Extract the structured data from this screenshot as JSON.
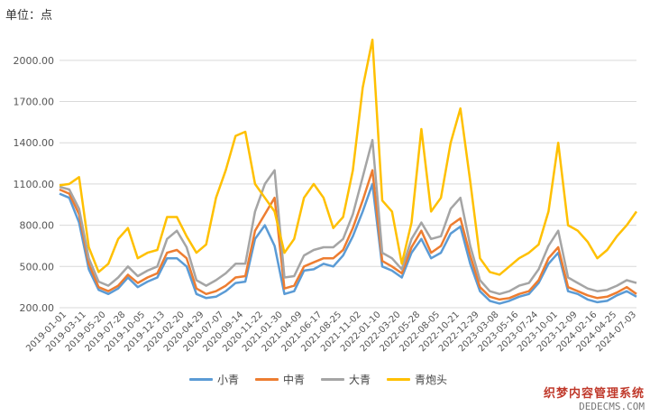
{
  "unit_label": "单位：点",
  "watermark": {
    "line1": "织梦内容管理系统",
    "line2": "DEDECMS.COM"
  },
  "chart_data": {
    "type": "line",
    "ylim": [
      200,
      2150
    ],
    "y_ticks": [
      "200.00",
      "500.00",
      "800.00",
      "1100.00",
      "1400.00",
      "1700.00",
      "2000.00"
    ],
    "y_tick_values": [
      200,
      500,
      800,
      1100,
      1400,
      1700,
      2000
    ],
    "x_ticks": [
      "2019-01-01",
      "2019-03-11",
      "2019-05-20",
      "2019-07-28",
      "2019-10-05",
      "2019-12-13",
      "2020-02-20",
      "2020-04-29",
      "2020-07-07",
      "2020-09-14",
      "2020-11-22",
      "2021-01-30",
      "2021-04-09",
      "2021-06-17",
      "2021-08-25",
      "2021-11-02",
      "2022-01-10",
      "2022-03-20",
      "2022-05-28",
      "2022-08-05",
      "2022-10-21",
      "2022-12-29",
      "2023-03-08",
      "2023-05-16",
      "2023-07-24",
      "2023-10-01",
      "2023-12-09",
      "2024-02-16",
      "2024-04-25",
      "2024-07-03"
    ],
    "grid": "horizontal",
    "legend_position": "bottom",
    "series": [
      {
        "name": "小青",
        "color": "#5b9bd5",
        "values": [
          1030,
          1000,
          820,
          480,
          330,
          300,
          340,
          420,
          350,
          390,
          420,
          560,
          560,
          500,
          300,
          270,
          280,
          320,
          380,
          390,
          700,
          800,
          650,
          300,
          320,
          470,
          480,
          520,
          500,
          580,
          720,
          900,
          1100,
          500,
          470,
          420,
          600,
          700,
          560,
          600,
          740,
          790,
          520,
          320,
          250,
          230,
          250,
          280,
          300,
          380,
          520,
          600,
          320,
          300,
          260,
          240,
          250,
          290,
          320,
          280
        ]
      },
      {
        "name": "中青",
        "color": "#ed7d31",
        "values": [
          1060,
          1030,
          880,
          520,
          350,
          320,
          360,
          440,
          380,
          420,
          450,
          600,
          620,
          560,
          340,
          300,
          320,
          360,
          420,
          430,
          760,
          880,
          1000,
          340,
          360,
          500,
          530,
          560,
          560,
          620,
          780,
          980,
          1200,
          540,
          500,
          450,
          640,
          760,
          600,
          650,
          800,
          850,
          580,
          350,
          280,
          260,
          270,
          300,
          320,
          400,
          560,
          640,
          350,
          320,
          290,
          270,
          280,
          310,
          350,
          300
        ]
      },
      {
        "name": "大青",
        "color": "#a5a5a5",
        "values": [
          1080,
          1060,
          920,
          560,
          390,
          360,
          420,
          500,
          430,
          470,
          500,
          700,
          760,
          640,
          400,
          360,
          400,
          450,
          520,
          520,
          900,
          1100,
          1200,
          420,
          430,
          580,
          620,
          640,
          640,
          700,
          880,
          1150,
          1420,
          600,
          560,
          480,
          700,
          820,
          700,
          720,
          920,
          1000,
          650,
          400,
          320,
          300,
          320,
          360,
          380,
          480,
          650,
          760,
          420,
          380,
          340,
          320,
          330,
          360,
          400,
          380
        ]
      },
      {
        "name": "青炮头",
        "color": "#ffc000",
        "values": [
          1090,
          1100,
          1150,
          640,
          460,
          520,
          700,
          780,
          560,
          600,
          620,
          860,
          860,
          720,
          600,
          660,
          1000,
          1200,
          1450,
          1480,
          1100,
          1000,
          900,
          600,
          700,
          1000,
          1100,
          1000,
          780,
          860,
          1200,
          1800,
          2150,
          980,
          900,
          520,
          820,
          1500,
          900,
          1000,
          1400,
          1650,
          1120,
          560,
          460,
          440,
          500,
          560,
          600,
          660,
          900,
          1400,
          800,
          760,
          680,
          560,
          620,
          720,
          800,
          900
        ]
      }
    ]
  }
}
